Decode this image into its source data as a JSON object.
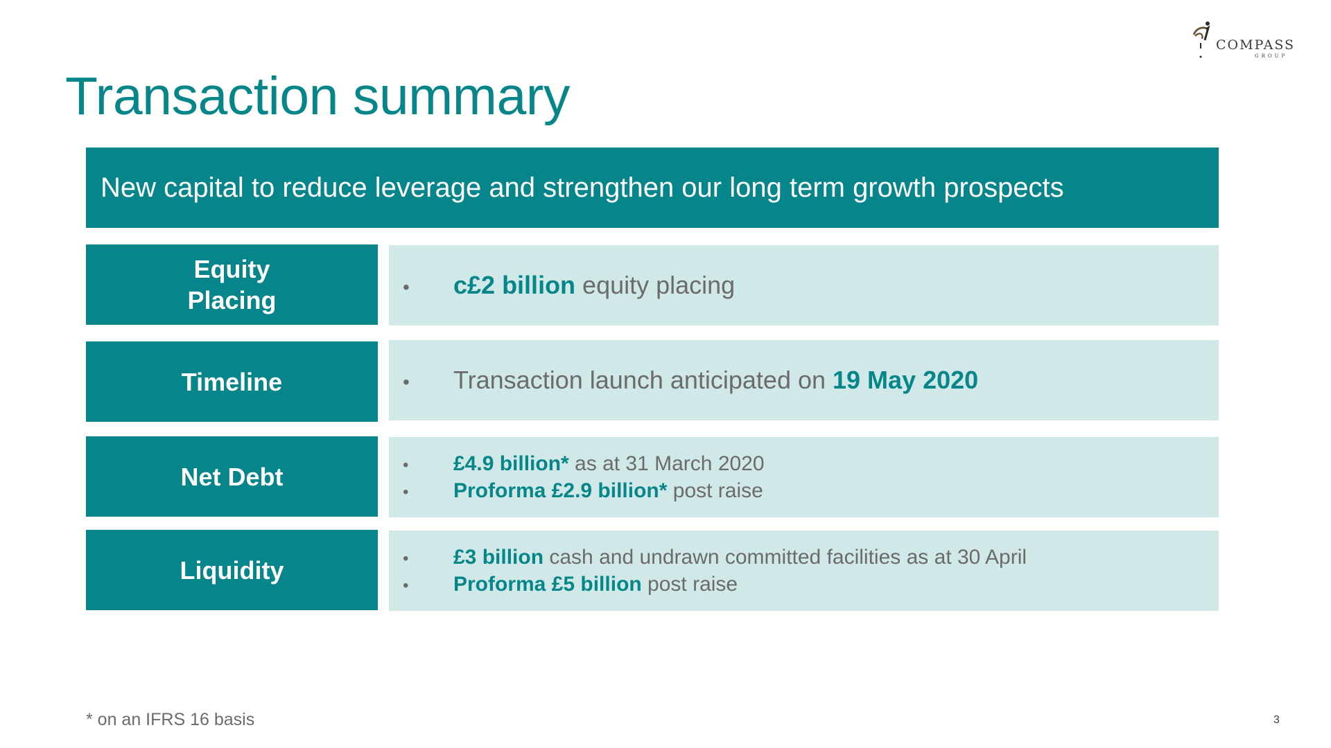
{
  "header": {
    "title": "Transaction summary",
    "logo": {
      "name": "COMPASS",
      "sub": "GROUP",
      "icon": "compass-group-logo-icon"
    }
  },
  "banner": {
    "text": "New capital to reduce leverage and strengthen our long term growth prospects"
  },
  "rows": [
    {
      "label_line1": "Equity",
      "label_line2": "Placing",
      "bullets": [
        {
          "highlight": "c£2 billion",
          "rest": " equity placing"
        }
      ]
    },
    {
      "label": "Timeline",
      "bullets": [
        {
          "lead": "Transaction launch anticipated on ",
          "highlight": "19 May 2020"
        }
      ]
    },
    {
      "label": "Net Debt",
      "bullets": [
        {
          "highlight": "£4.9 billion*",
          "rest": " as at 31 March 2020"
        },
        {
          "highlight": "Proforma £2.9 billion*",
          "rest": " post raise"
        }
      ]
    },
    {
      "label": "Liquidity",
      "bullets": [
        {
          "highlight": "£3 billion",
          "rest": " cash and undrawn committed facilities as at 30 April"
        },
        {
          "highlight": "Proforma £5 billion",
          "rest": " post raise"
        }
      ]
    }
  ],
  "bullet_symbol": "•",
  "footer": {
    "footnote": "* on an IFRS 16 basis",
    "page_number": "3"
  },
  "colors": {
    "teal": "#06858a",
    "light_teal": "#d0e8e7",
    "grey_text": "#6b6b6b"
  }
}
